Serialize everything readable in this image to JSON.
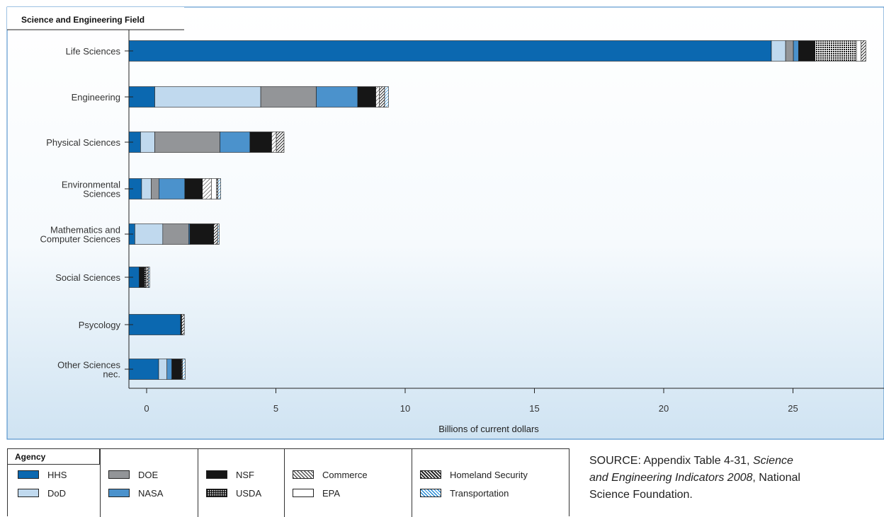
{
  "chart_data": {
    "type": "bar",
    "orientation": "horizontal",
    "stacked": true,
    "title": "",
    "ylabel": "Science and Engineering Field",
    "xlabel": "Billions of current dollars",
    "xlim": [
      -1.2,
      28.5
    ],
    "xticks": [
      0,
      5,
      10,
      15,
      20,
      25
    ],
    "grid": false,
    "categories": [
      "Life Sciences",
      "Engineering",
      "Physical Sciences",
      "Environmental Sciences",
      "Mathematics and Computer Sciences",
      "Social Sciences",
      "Psycology",
      "Other Sciences nec."
    ],
    "category_lines": [
      [
        "Life Sciences"
      ],
      [
        "Engineering"
      ],
      [
        "Physical Sciences"
      ],
      [
        "Environmental",
        "Sciences"
      ],
      [
        "Mathematics and",
        "Computer Sciences"
      ],
      [
        "Social Sciences"
      ],
      [
        "Psycology"
      ],
      [
        "Other Sciences",
        "nec."
      ]
    ],
    "series": [
      {
        "name": "HHS",
        "color": "#0b68b0",
        "values": [
          24.85,
          1.0,
          0.45,
          0.49,
          0.23,
          0.4,
          2.0,
          1.15
        ]
      },
      {
        "name": "DoD",
        "color": "#c0d9ee",
        "values": [
          0.55,
          4.1,
          0.55,
          0.37,
          1.08,
          0.0,
          0.0,
          0.32
        ]
      },
      {
        "name": "DOE",
        "color": "#939598",
        "values": [
          0.3,
          2.15,
          2.52,
          0.3,
          1.0,
          0.0,
          0.0,
          0.0
        ]
      },
      {
        "name": "NASA",
        "color": "#4b92cc",
        "values": [
          0.2,
          1.6,
          1.16,
          1.0,
          0.05,
          0.0,
          0.0,
          0.19
        ]
      },
      {
        "name": "NSF",
        "color": "#161616",
        "values": [
          0.64,
          0.7,
          0.84,
          0.68,
          0.92,
          0.2,
          0.04,
          0.38
        ]
      },
      {
        "name": "USDA",
        "color": "#595959",
        "values": [
          1.6,
          0.0,
          0.0,
          0.0,
          0.0,
          0.05,
          0.0,
          0.0
        ]
      },
      {
        "name": "Commerce",
        "color": "#b5b5b5",
        "values": [
          0.0,
          0.14,
          0.18,
          0.35,
          0.0,
          0.04,
          0.0,
          0.0
        ]
      },
      {
        "name": "EPA",
        "color": "#ffffff",
        "values": [
          0.18,
          0.0,
          0.0,
          0.2,
          0.0,
          0.0,
          0.0,
          0.0
        ]
      },
      {
        "name": "Homeland Security",
        "color": "#3a3a3a",
        "values": [
          0.18,
          0.2,
          0.3,
          0.05,
          0.15,
          0.06,
          0.1,
          0.03
        ]
      },
      {
        "name": "Transportation",
        "color": "#4aa3e0",
        "values": [
          0.0,
          0.15,
          0.0,
          0.11,
          0.06,
          0.05,
          0.0,
          0.1
        ]
      }
    ],
    "legend": {
      "title": "Agency",
      "position": "bottom-left"
    }
  },
  "source": {
    "line1_prefix": "SOURCE: Appendix Table 4-31, ",
    "line1_italic": "Science",
    "line2_italic": "and Engineering Indicators 2008",
    "line2_suffix": ", National",
    "line3": "Science Foundation."
  }
}
